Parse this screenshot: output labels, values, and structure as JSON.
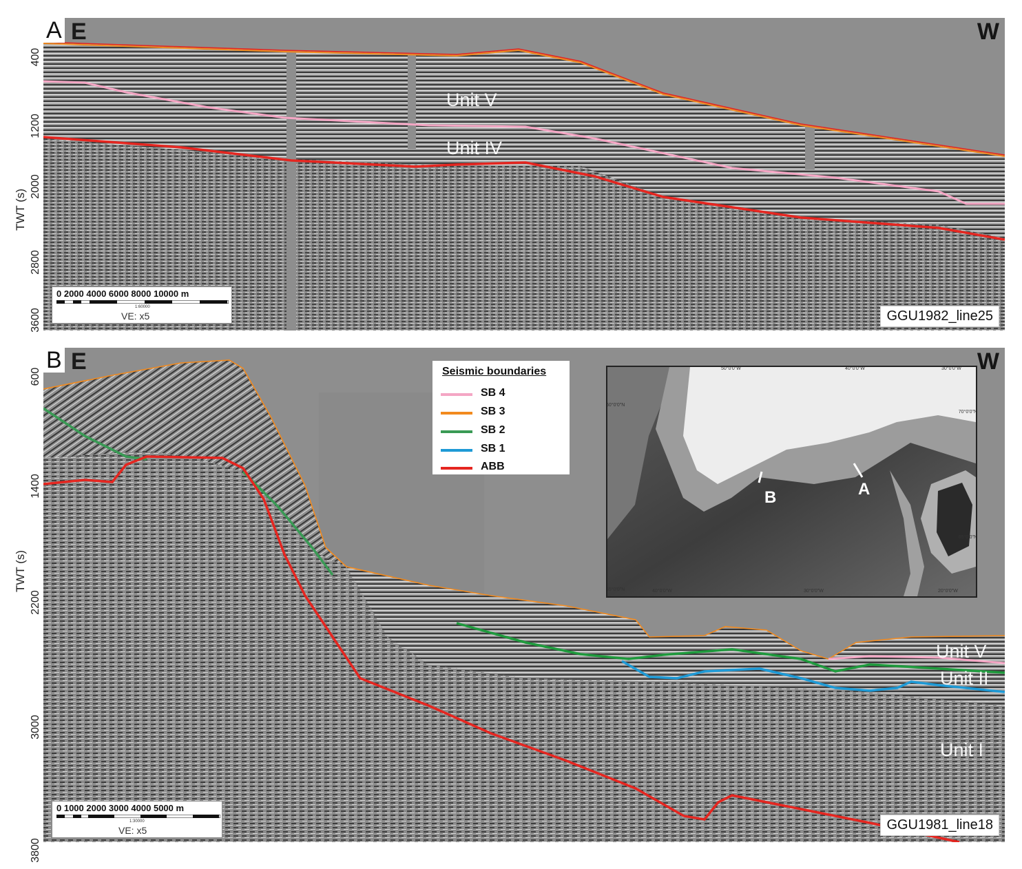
{
  "panel_a": {
    "letter": "A",
    "dir_left": "E",
    "dir_right": "W",
    "axis_title": "TWT (s)",
    "ticks": [
      "400",
      "1200",
      "2000",
      "2800",
      "3600"
    ],
    "units": [
      "Unit V",
      "Unit IV"
    ],
    "line_label": "GGU1982_line25",
    "scale_numbers": "0   2000  4000  6000  8000  10000  m",
    "scale_ratio": "1:60000",
    "ve": "VE: x5"
  },
  "panel_b": {
    "letter": "B",
    "dir_left": "E",
    "dir_right": "W",
    "axis_title": "TWT (s)",
    "ticks": [
      "600",
      "1400",
      "2200",
      "3000",
      "3800"
    ],
    "units": [
      "Unit V",
      "Unit II",
      "Unit I"
    ],
    "line_label": "GGU1981_line18",
    "scale_numbers": "0   1000  2000  3000  4000  5000  m",
    "scale_ratio": "1:30000",
    "ve": "VE: x5"
  },
  "legend": {
    "title": "Seismic boundaries",
    "items": [
      {
        "label": "SB 4",
        "color": "#f4a6c4"
      },
      {
        "label": "SB 3",
        "color": "#f28a1e"
      },
      {
        "label": "SB 2",
        "color": "#3a9a55"
      },
      {
        "label": "SB 1",
        "color": "#1e9ad6"
      },
      {
        "label": "ABB",
        "color": "#e52620"
      }
    ]
  },
  "inset_map": {
    "top_lons": [
      "50°0'0\"W",
      "40°0'0\"W",
      "30°0'0\"W"
    ],
    "bottom_lons": [
      "40°0'0\"W",
      "30°0'0\"W",
      "20°0'0\"W"
    ],
    "left_lats": [
      "60°0'0\"N",
      "55°0'0\"N"
    ],
    "right_lats": [
      "70°0'0\"N",
      "65°0'0\"N"
    ],
    "markers": [
      "A",
      "B"
    ]
  }
}
